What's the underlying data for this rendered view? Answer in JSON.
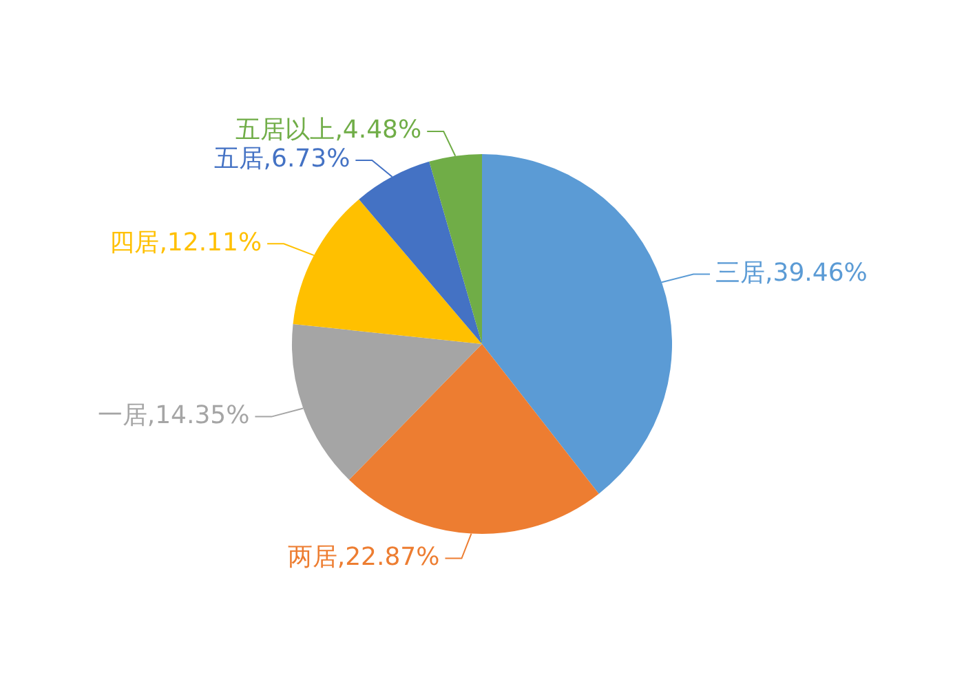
{
  "chart_data": {
    "type": "pie",
    "categories": [
      "三居",
      "两居",
      "一居",
      "四居",
      "五居",
      "五居以上"
    ],
    "values": [
      39.46,
      22.87,
      14.35,
      12.11,
      6.73,
      4.48
    ],
    "colors": [
      "#5b9bd5",
      "#ed7d31",
      "#a5a5a5",
      "#ffc000",
      "#4472c4",
      "#70ad47"
    ],
    "value_labels": [
      "39.46%",
      "22.87%",
      "14.35%",
      "12.11%",
      "6.73%",
      "4.48%"
    ],
    "legend": false
  }
}
